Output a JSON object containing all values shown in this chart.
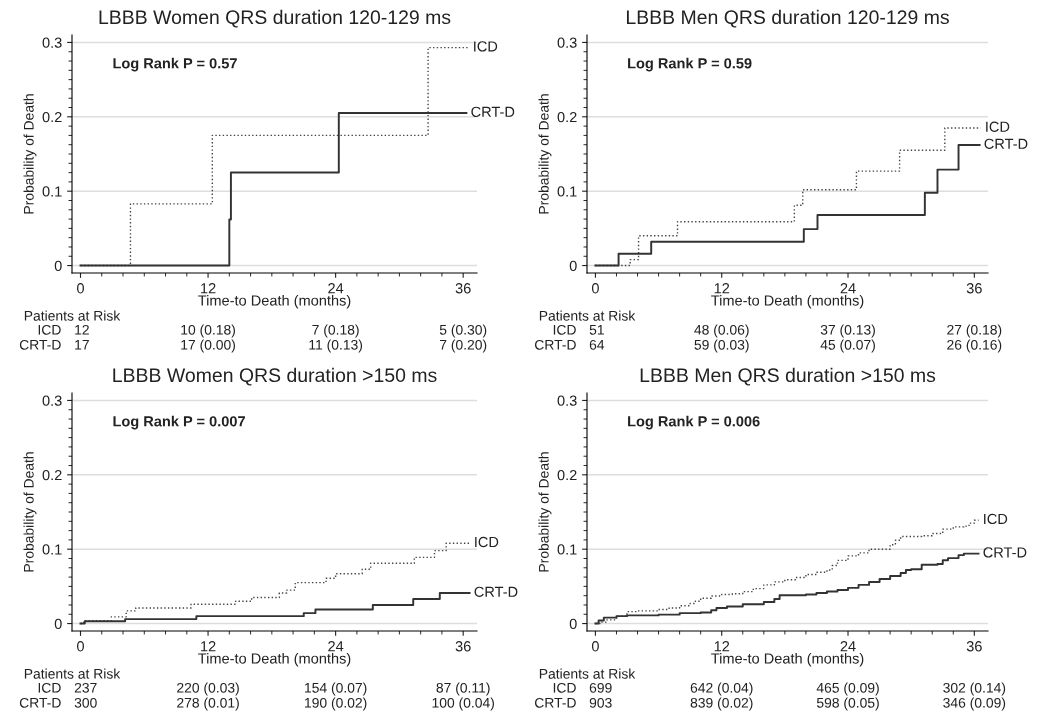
{
  "chart_data": [
    {
      "type": "step",
      "title": "LBBB Women QRS duration 120-129 ms",
      "xlabel": "Time-to Death (months)",
      "ylabel": "Probability of Death",
      "xlim": [
        -0.8,
        37.3
      ],
      "xticks": [
        0,
        12,
        24,
        36
      ],
      "ylim": [
        -0.01,
        0.31
      ],
      "yticks": [
        0,
        0.1,
        0.2,
        0.3
      ],
      "grid": "y",
      "legend": false,
      "series": [
        {
          "name": "ICD",
          "color": "#444444",
          "line_style": "dotted",
          "x": [
            0,
            4.7,
            12.4,
            32.7,
            36.5
          ],
          "values": [
            0,
            0.083,
            0.175,
            0.293,
            0.293
          ]
        },
        {
          "name": "CRT-D",
          "color": "#333333",
          "line_style": "solid",
          "x": [
            0,
            14.0,
            14.15,
            24.3,
            36.3
          ],
          "values": [
            0,
            0.062,
            0.125,
            0.205,
            0.205
          ]
        }
      ],
      "annotations": [
        "Log Rank P = 0.57",
        "Patients at Risk",
        "ICD",
        "12",
        "10 (0.18)",
        "7 (0.18)",
        "5 (0.30)",
        "CRT-D",
        "17",
        "17 (0.00)",
        "11 (0.13)",
        "7 (0.20)"
      ]
    },
    {
      "type": "step",
      "title": "LBBB Men QRS duration 120-129 ms",
      "xlabel": "Time-to Death (months)",
      "ylabel": "Probability of Death",
      "xlim": [
        -0.8,
        37.3
      ],
      "xticks": [
        0,
        12,
        24,
        36
      ],
      "ylim": [
        -0.01,
        0.31
      ],
      "yticks": [
        0,
        0.1,
        0.2,
        0.3
      ],
      "grid": "y",
      "legend": false,
      "series": [
        {
          "name": "ICD",
          "color": "#444444",
          "line_style": "dotted",
          "x": [
            0,
            3.3,
            4.1,
            7.8,
            18.9,
            19.7,
            24.8,
            28.9,
            33.2,
            36.6
          ],
          "values": [
            0,
            0.008,
            0.04,
            0.059,
            0.081,
            0.102,
            0.127,
            0.155,
            0.185,
            0.185
          ]
        },
        {
          "name": "CRT-D",
          "color": "#333333",
          "line_style": "solid",
          "x": [
            0,
            2.2,
            5.3,
            19.8,
            21.1,
            31.3,
            32.5,
            34.5,
            36.5
          ],
          "values": [
            0,
            0.016,
            0.032,
            0.049,
            0.068,
            0.098,
            0.129,
            0.162,
            0.162
          ]
        }
      ],
      "annotations": [
        "Log Rank P = 0.59",
        "Patients at Risk",
        "ICD",
        "51",
        "48 (0.06)",
        "37 (0.13)",
        "27 (0.18)",
        "CRT-D",
        "64",
        "59 (0.03)",
        "45 (0.07)",
        "26 (0.16)"
      ]
    },
    {
      "type": "step",
      "title": "LBBB Women QRS duration >150 ms",
      "xlabel": "Time-to Death (months)",
      "ylabel": "Probability of Death",
      "xlim": [
        -0.8,
        37.3
      ],
      "xticks": [
        0,
        12,
        24,
        36
      ],
      "ylim": [
        -0.01,
        0.31
      ],
      "yticks": [
        0,
        0.1,
        0.2,
        0.3
      ],
      "grid": "y",
      "legend": false,
      "series": [
        {
          "name": "ICD",
          "color": "#444444",
          "line_style": "dotted",
          "x": [
            0,
            0.3,
            2.9,
            4.3,
            5.2,
            10.4,
            14.6,
            16.1,
            18.7,
            19.4,
            20.2,
            23.1,
            24.0,
            26.5,
            27.3,
            31.4,
            33.3,
            34.4,
            36.6
          ],
          "values": [
            0,
            0.004,
            0.009,
            0.017,
            0.021,
            0.026,
            0.03,
            0.035,
            0.041,
            0.045,
            0.055,
            0.061,
            0.067,
            0.073,
            0.081,
            0.089,
            0.098,
            0.108,
            0.108
          ]
        },
        {
          "name": "CRT-D",
          "color": "#333333",
          "line_style": "solid",
          "x": [
            0,
            0.4,
            4.2,
            10.9,
            21.0,
            22.1,
            27.5,
            31.3,
            33.8,
            36.6
          ],
          "values": [
            0,
            0.003,
            0.006,
            0.01,
            0.014,
            0.019,
            0.025,
            0.033,
            0.041,
            0.041
          ]
        }
      ],
      "annotations": [
        "Log Rank P = 0.007",
        "Patients at Risk",
        "ICD",
        "237",
        "220 (0.03)",
        "154 (0.07)",
        "87 (0.11)",
        "CRT-D",
        "300",
        "278 (0.01)",
        "190 (0.02)",
        "100 (0.04)"
      ]
    },
    {
      "type": "step",
      "title": "LBBB Men QRS duration >150 ms",
      "xlabel": "Time-to Death (months)",
      "ylabel": "Probability of Death",
      "xlim": [
        -0.8,
        37.3
      ],
      "xticks": [
        0,
        12,
        24,
        36
      ],
      "ylim": [
        -0.01,
        0.31
      ],
      "yticks": [
        0,
        0.1,
        0.2,
        0.3
      ],
      "grid": "y",
      "legend": false,
      "series": [
        {
          "name": "ICD",
          "color": "#444444",
          "line_style": "dotted",
          "x": [
            0,
            0.5,
            1,
            2,
            3,
            4,
            6,
            7,
            8,
            9,
            9.5,
            10,
            11,
            12,
            13,
            14,
            15,
            16,
            17,
            18,
            19,
            20,
            21,
            22,
            22.5,
            23,
            24,
            25,
            26,
            28,
            28.5,
            29,
            31,
            32,
            33,
            34,
            35,
            35.5,
            36,
            36.4
          ],
          "values": [
            0,
            0.002,
            0.005,
            0.01,
            0.016,
            0.017,
            0.019,
            0.021,
            0.024,
            0.027,
            0.03,
            0.034,
            0.037,
            0.039,
            0.04,
            0.043,
            0.047,
            0.052,
            0.056,
            0.059,
            0.062,
            0.066,
            0.069,
            0.072,
            0.078,
            0.085,
            0.091,
            0.095,
            0.1,
            0.106,
            0.112,
            0.117,
            0.118,
            0.121,
            0.127,
            0.13,
            0.131,
            0.135,
            0.139,
            0.139
          ]
        },
        {
          "name": "CRT-D",
          "color": "#333333",
          "line_style": "solid",
          "x": [
            0,
            0.3,
            0.8,
            2,
            3,
            6,
            8,
            10,
            11,
            11.5,
            12.5,
            14,
            16,
            17,
            17.5,
            20,
            21,
            22,
            23,
            24,
            25,
            26,
            27,
            28,
            29,
            29.5,
            30,
            31,
            32.5,
            33,
            33.5,
            34.5,
            35,
            36.4
          ],
          "values": [
            0,
            0.004,
            0.008,
            0.01,
            0.011,
            0.012,
            0.014,
            0.015,
            0.018,
            0.021,
            0.023,
            0.026,
            0.029,
            0.033,
            0.038,
            0.039,
            0.041,
            0.043,
            0.045,
            0.048,
            0.052,
            0.056,
            0.06,
            0.064,
            0.068,
            0.072,
            0.073,
            0.079,
            0.08,
            0.085,
            0.088,
            0.092,
            0.094,
            0.094
          ]
        }
      ],
      "annotations": [
        "Log Rank P = 0.006",
        "Patients at Risk",
        "ICD",
        "699",
        "642 (0.04)",
        "465 (0.09)",
        "302 (0.14)",
        "CRT-D",
        "903",
        "839 (0.02)",
        "598 (0.05)",
        "346 (0.09)"
      ]
    }
  ]
}
